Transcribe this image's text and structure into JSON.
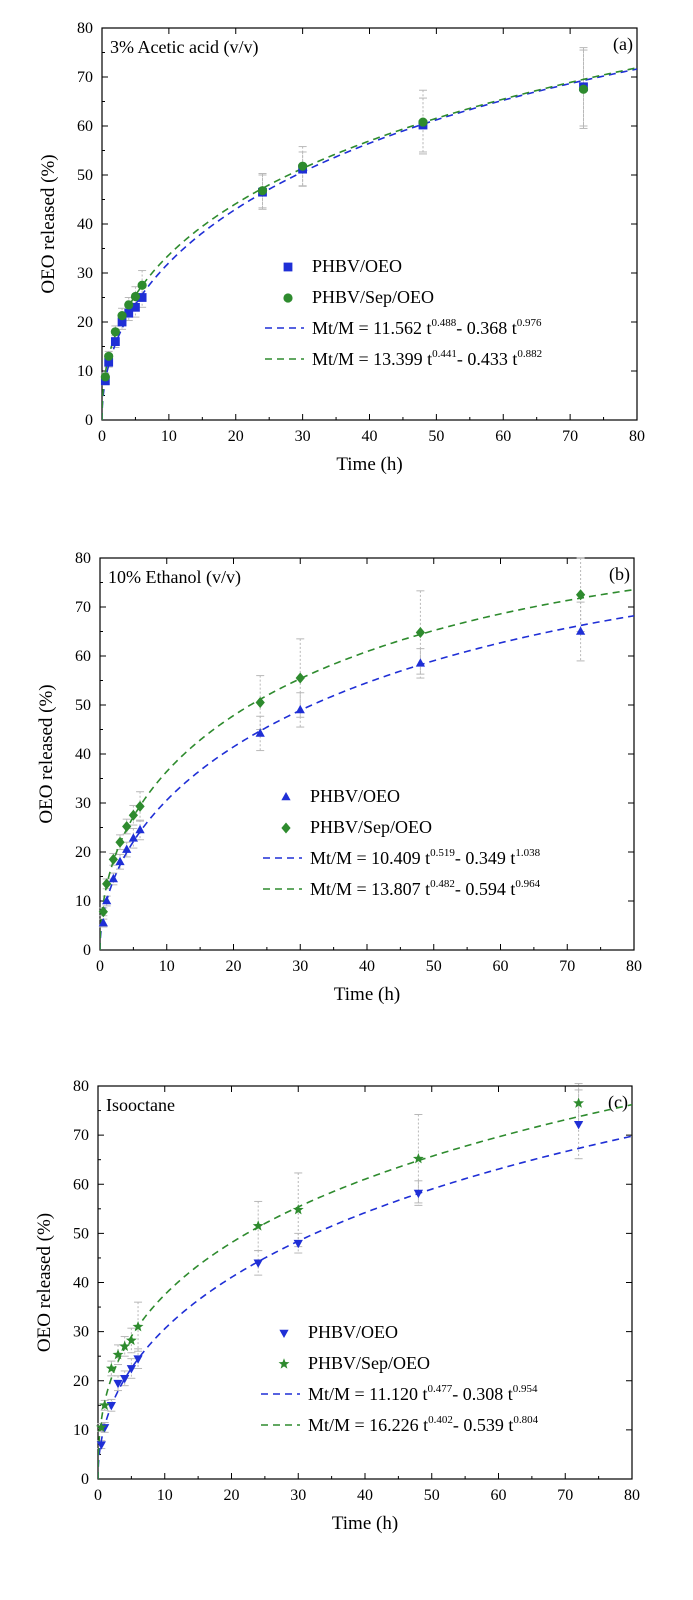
{
  "chart_data": [
    {
      "type": "scatter",
      "panel_label": "(a)",
      "title": "3% Acetic acid (v/v)",
      "xlabel": "Time (h)",
      "ylabel": "OEO released (%)",
      "xlim": [
        0,
        80
      ],
      "ylim": [
        0,
        80
      ],
      "xticks": [
        "0",
        "10",
        "20",
        "30",
        "40",
        "50",
        "60",
        "70",
        "80"
      ],
      "yticks": [
        "0",
        "10",
        "20",
        "30",
        "40",
        "50",
        "60",
        "70",
        "80"
      ],
      "legend_position": "center-right",
      "series": [
        {
          "name": "PHBV/OEO",
          "marker": "square",
          "color": "#1f2fd6",
          "x": [
            0.5,
            1,
            2,
            3,
            4,
            5,
            6,
            24,
            30,
            48,
            72
          ],
          "y": [
            8,
            11.8,
            16,
            20,
            21.8,
            23,
            25,
            46.5,
            51.2,
            60.2,
            68
          ],
          "err": [
            0.8,
            1,
            1.2,
            1.5,
            1.5,
            2,
            2,
            3.5,
            3.5,
            5.5,
            8
          ]
        },
        {
          "name": "PHBV/Sep/OEO",
          "marker": "circle",
          "color": "#2e8b2e",
          "x": [
            0.5,
            1,
            2,
            3,
            4,
            5,
            6,
            24,
            30,
            48,
            72
          ],
          "y": [
            8.8,
            13,
            18,
            21.3,
            23.5,
            25.2,
            27.5,
            46.8,
            51.8,
            60.8,
            67.5
          ],
          "err": [
            0.8,
            1,
            1.2,
            1.5,
            1.5,
            2,
            3,
            3.5,
            4,
            6.5,
            8
          ]
        }
      ],
      "fits": [
        {
          "color": "#1f2fd6",
          "a": 11.562,
          "n": 0.488,
          "b": 0.368,
          "m": 0.976,
          "label_main": "Mt/M = 11.562 t",
          "exp1": "0.488",
          "label_mid": "- 0.368 t",
          "exp2": "0.976"
        },
        {
          "color": "#2e8b2e",
          "a": 13.399,
          "n": 0.441,
          "b": 0.433,
          "m": 0.882,
          "label_main": "Mt/M = 13.399 t",
          "exp1": "0.441",
          "label_mid": "- 0.433 t",
          "exp2": "0.882"
        }
      ]
    },
    {
      "type": "scatter",
      "panel_label": "(b)",
      "title": "10% Ethanol (v/v)",
      "xlabel": "Time (h)",
      "ylabel": "OEO released (%)",
      "xlim": [
        0,
        80
      ],
      "ylim": [
        0,
        80
      ],
      "xticks": [
        "0",
        "10",
        "20",
        "30",
        "40",
        "50",
        "60",
        "70",
        "80"
      ],
      "yticks": [
        "0",
        "10",
        "20",
        "30",
        "40",
        "50",
        "60",
        "70",
        "80"
      ],
      "legend_position": "center-right",
      "series": [
        {
          "name": "PHBV/OEO",
          "marker": "triangle-up",
          "color": "#1f2fd6",
          "x": [
            0.5,
            1,
            2,
            3,
            4,
            5,
            6,
            24,
            30,
            48,
            72
          ],
          "y": [
            5.5,
            10,
            14.5,
            18,
            20.5,
            22.8,
            24.5,
            44.2,
            49,
            58.5,
            65
          ],
          "err": [
            0.8,
            1,
            1.2,
            1.5,
            1.5,
            2,
            2,
            3.5,
            3.5,
            3,
            6
          ]
        },
        {
          "name": "PHBV/Sep/OEO",
          "marker": "diamond",
          "color": "#2e8b2e",
          "x": [
            0.5,
            1,
            2,
            3,
            4,
            5,
            6,
            24,
            30,
            48,
            72
          ],
          "y": [
            7.8,
            13.5,
            18.5,
            22,
            25.2,
            27.5,
            29.3,
            50.5,
            55.5,
            64.8,
            72.5
          ],
          "err": [
            0.8,
            1,
            1.2,
            1.5,
            1.5,
            2,
            3,
            5.5,
            8,
            8.5,
            7.5
          ]
        }
      ],
      "fits": [
        {
          "color": "#1f2fd6",
          "a": 10.409,
          "n": 0.519,
          "b": 0.349,
          "m": 1.038,
          "label_main": "Mt/M = 10.409 t",
          "exp1": "0.519",
          "label_mid": "- 0.349 t",
          "exp2": "1.038"
        },
        {
          "color": "#2e8b2e",
          "a": 13.807,
          "n": 0.482,
          "b": 0.594,
          "m": 0.964,
          "label_main": "Mt/M = 13.807 t",
          "exp1": "0.482",
          "label_mid": "- 0.594 t",
          "exp2": "0.964"
        }
      ]
    },
    {
      "type": "scatter",
      "panel_label": "(c)",
      "title": "Isooctane",
      "xlabel": "Time (h)",
      "ylabel": "OEO released (%)",
      "xlim": [
        0,
        80
      ],
      "ylim": [
        0,
        80
      ],
      "xticks": [
        "0",
        "10",
        "20",
        "30",
        "40",
        "50",
        "60",
        "70",
        "80"
      ],
      "yticks": [
        "0",
        "10",
        "20",
        "30",
        "40",
        "50",
        "60",
        "70",
        "80"
      ],
      "legend_position": "center-right",
      "series": [
        {
          "name": "PHBV/OEO",
          "marker": "triangle-down",
          "color": "#1f2fd6",
          "x": [
            0.5,
            1,
            2,
            3,
            4,
            5,
            6,
            24,
            30,
            48,
            72
          ],
          "y": [
            7,
            10.5,
            15,
            19.5,
            20.5,
            22.5,
            24.5,
            44,
            48,
            58.2,
            72.2
          ],
          "err": [
            0.8,
            1,
            1.2,
            1.5,
            1.5,
            2,
            2,
            2.5,
            2,
            2.5,
            7
          ]
        },
        {
          "name": "PHBV/Sep/OEO",
          "marker": "star",
          "color": "#2e8b2e",
          "x": [
            0.5,
            1,
            2,
            3,
            4,
            5,
            6,
            24,
            30,
            48,
            72
          ],
          "y": [
            10.5,
            15,
            22.5,
            25.3,
            27,
            28.2,
            31,
            51.5,
            54.8,
            65.2,
            76.5
          ],
          "err": [
            0.8,
            1,
            1.5,
            2,
            2,
            2.5,
            5,
            5,
            7.5,
            9,
            4
          ]
        }
      ],
      "fits": [
        {
          "color": "#1f2fd6",
          "a": 11.12,
          "n": 0.477,
          "b": 0.308,
          "m": 0.954,
          "label_main": "Mt/M = 11.120 t",
          "exp1": "0.477",
          "label_mid": "- 0.308 t",
          "exp2": "0.954"
        },
        {
          "color": "#2e8b2e",
          "a": 16.226,
          "n": 0.402,
          "b": 0.539,
          "m": 0.804,
          "label_main": "Mt/M = 16.226 t",
          "exp1": "0.402",
          "label_mid": "- 0.539 t",
          "exp2": "0.804"
        }
      ]
    }
  ]
}
